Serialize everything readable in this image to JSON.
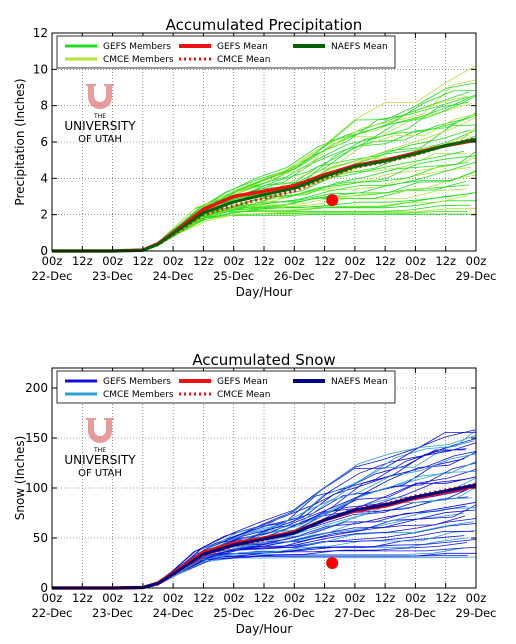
{
  "logo": {
    "line1": "THE",
    "line2": "UNIVERSITY",
    "line3": "OF UTAH"
  },
  "colors": {
    "gefs_members_precip": "#22dd22",
    "cmce_members_precip": "#b5e33a",
    "naefs_mean_precip": "#006400",
    "gefs_members_snow": "#1010dd",
    "cmce_members_snow": "#2a9fd8",
    "naefs_mean_snow": "#000080",
    "gefs_mean": "#ee1111",
    "cmce_mean": "#ee1111",
    "observed_marker": "#ff0000",
    "logo": "#e07a7a"
  },
  "chart_data": [
    {
      "type": "line",
      "title": "Accumulated Precipitation",
      "xlabel": "Day/Hour",
      "ylabel": "Precipitation (Inches)",
      "ylim": [
        0,
        12
      ],
      "xlim_hours": [
        0,
        168
      ],
      "yticks": [
        0,
        2,
        4,
        6,
        8,
        10,
        12
      ],
      "xticks_hours": [
        0,
        12,
        24,
        36,
        48,
        60,
        72,
        84,
        96,
        108,
        120,
        132,
        144,
        156,
        168
      ],
      "xtick_labels": [
        "00z",
        "12z",
        "00z",
        "12z",
        "00z",
        "12z",
        "00z",
        "12z",
        "00z",
        "12z",
        "00z",
        "12z",
        "00z",
        "12z",
        "00z"
      ],
      "date_labels": [
        "22-Dec",
        "23-Dec",
        "24-Dec",
        "25-Dec",
        "26-Dec",
        "27-Dec",
        "28-Dec",
        "29-Dec"
      ],
      "grid": true,
      "legend_position": "top",
      "legend": [
        {
          "name": "GEFS Members",
          "key": "gefs_members"
        },
        {
          "name": "CMCE Members",
          "key": "cmce_members"
        },
        {
          "name": "GEFS Mean",
          "key": "gefs_mean"
        },
        {
          "name": "CMCE Mean",
          "key": "cmce_mean"
        },
        {
          "name": "NAEFS Mean",
          "key": "naefs_mean"
        }
      ],
      "x_hours": [
        0,
        24,
        36,
        42,
        48,
        60,
        72,
        84,
        96,
        108,
        120,
        132,
        144,
        156,
        168
      ],
      "series": [
        {
          "name": "GEFS Mean",
          "values": [
            0,
            0,
            0.05,
            0.4,
            1.0,
            2.3,
            3.0,
            3.3,
            3.6,
            4.2,
            4.7,
            5.0,
            5.4,
            5.8,
            6.1
          ]
        },
        {
          "name": "CMCE Mean",
          "values": [
            0,
            0,
            0.05,
            0.35,
            0.9,
            2.0,
            2.5,
            2.9,
            3.3,
            4.0,
            4.6,
            4.9,
            5.3,
            5.8,
            6.2
          ]
        },
        {
          "name": "NAEFS Mean",
          "values": [
            0,
            0,
            0.05,
            0.37,
            0.95,
            2.1,
            2.7,
            3.1,
            3.45,
            4.1,
            4.65,
            4.95,
            5.35,
            5.8,
            6.15
          ]
        }
      ],
      "member_envelope": {
        "min_final": 1.9,
        "max_final": 9.7
      },
      "observed": {
        "hour": 111,
        "value": 2.8
      }
    },
    {
      "type": "line",
      "title": "Accumulated Snow",
      "xlabel": "Day/Hour",
      "ylabel": "Snow (Inches)",
      "ylim": [
        0,
        220
      ],
      "xlim_hours": [
        0,
        168
      ],
      "yticks": [
        0,
        50,
        100,
        150,
        200
      ],
      "xticks_hours": [
        0,
        12,
        24,
        36,
        48,
        60,
        72,
        84,
        96,
        108,
        120,
        132,
        144,
        156,
        168
      ],
      "xtick_labels": [
        "00z",
        "12z",
        "00z",
        "12z",
        "00z",
        "12z",
        "00z",
        "12z",
        "00z",
        "12z",
        "00z",
        "12z",
        "00z",
        "12z",
        "00z"
      ],
      "date_labels": [
        "22-Dec",
        "23-Dec",
        "24-Dec",
        "25-Dec",
        "26-Dec",
        "27-Dec",
        "28-Dec",
        "29-Dec"
      ],
      "grid": true,
      "legend_position": "top",
      "legend": [
        {
          "name": "GEFS Members",
          "key": "gefs_members"
        },
        {
          "name": "CMCE Members",
          "key": "cmce_members"
        },
        {
          "name": "GEFS Mean",
          "key": "gefs_mean"
        },
        {
          "name": "CMCE Mean",
          "key": "cmce_mean"
        },
        {
          "name": "NAEFS Mean",
          "key": "naefs_mean"
        }
      ],
      "x_hours": [
        0,
        24,
        36,
        42,
        48,
        60,
        72,
        84,
        96,
        108,
        120,
        132,
        144,
        156,
        168
      ],
      "series": [
        {
          "name": "GEFS Mean",
          "values": [
            0,
            0,
            0.5,
            5,
            15,
            36,
            45,
            50,
            56,
            68,
            77,
            82,
            90,
            96,
            102
          ]
        },
        {
          "name": "CMCE Mean",
          "values": [
            0,
            0,
            0.5,
            4,
            13,
            32,
            42,
            48,
            55,
            68,
            79,
            84,
            92,
            98,
            104
          ]
        },
        {
          "name": "NAEFS Mean",
          "values": [
            0,
            0,
            0.5,
            4.5,
            14,
            34,
            43,
            49,
            55,
            68,
            78,
            83,
            91,
            97,
            103
          ]
        }
      ],
      "member_envelope": {
        "min_final": 30,
        "max_final": 162
      },
      "observed": {
        "hour": 111,
        "value": 25
      }
    }
  ]
}
